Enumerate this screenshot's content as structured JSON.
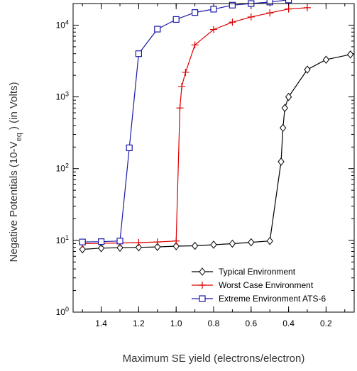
{
  "chart_data": {
    "type": "line",
    "title": "",
    "xlabel": "Maximum SE yield (electrons/electron)",
    "ylabel_parts": {
      "prefix": "Negative Potentials  (10-V",
      "subscript": "eq",
      "suffix": " ) (in Volts)"
    },
    "x_reversed": true,
    "xlim": [
      1.55,
      0.05
    ],
    "ylim": [
      1,
      20000
    ],
    "y_scale": "log",
    "x_ticks": [
      1.4,
      1.2,
      1.0,
      0.8,
      0.6,
      0.4,
      0.2
    ],
    "x_tick_labels": [
      "1.4",
      "1.2",
      "1.0",
      "0.8",
      "0.6",
      "0.4",
      "0.2"
    ],
    "y_ticks": [
      1,
      10,
      100,
      1000,
      10000
    ],
    "y_tick_exponents": [
      "0",
      "1",
      "2",
      "3",
      "4"
    ],
    "y_tick_base": "10",
    "legend_position": "bottom-right",
    "series": [
      {
        "name": "Typical Environment",
        "color": "#000000",
        "marker": "diamond",
        "x": [
          1.5,
          1.4,
          1.3,
          1.2,
          1.1,
          1.0,
          0.9,
          0.8,
          0.7,
          0.6,
          0.5,
          0.44,
          0.43,
          0.42,
          0.4,
          0.3,
          0.2,
          0.07
        ],
        "y": [
          7.5,
          7.8,
          7.9,
          8.0,
          8.1,
          8.3,
          8.4,
          8.7,
          9.0,
          9.4,
          9.8,
          125,
          370,
          700,
          1000,
          2400,
          3300,
          3900
        ]
      },
      {
        "name": "Worst Case Environment",
        "color": "#dd0000",
        "marker": "plus",
        "x": [
          1.5,
          1.4,
          1.3,
          1.2,
          1.1,
          1.0,
          0.98,
          0.97,
          0.95,
          0.9,
          0.8,
          0.7,
          0.6,
          0.5,
          0.4,
          0.3
        ],
        "y": [
          9.0,
          9.1,
          9.2,
          9.3,
          9.5,
          9.8,
          700,
          1400,
          2200,
          5300,
          8700,
          11000,
          13000,
          14800,
          16800,
          17500
        ]
      },
      {
        "name": "Extreme Environment ATS-6",
        "color": "#1a1aaa",
        "marker": "square",
        "x": [
          1.5,
          1.4,
          1.3,
          1.25,
          1.2,
          1.1,
          1.0,
          0.9,
          0.8,
          0.7,
          0.6,
          0.5,
          0.4
        ],
        "y": [
          9.5,
          9.6,
          9.8,
          195,
          4000,
          8800,
          12000,
          15000,
          16700,
          19000,
          20000,
          21000,
          22500
        ]
      }
    ]
  }
}
